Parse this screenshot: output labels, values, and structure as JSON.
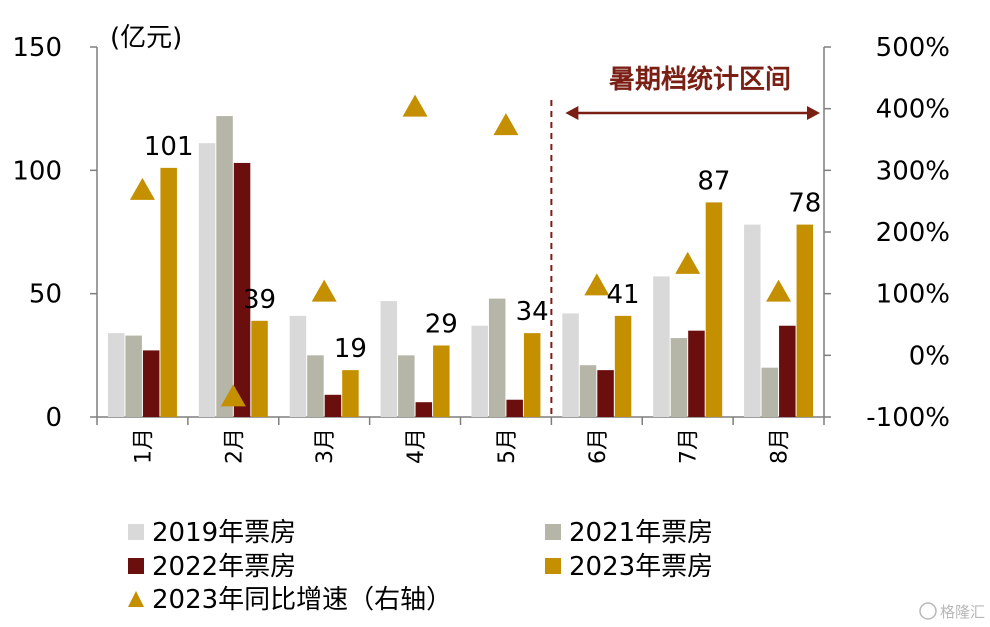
{
  "chart_data": {
    "type": "bar",
    "categories": [
      "1月",
      "2月",
      "3月",
      "4月",
      "5月",
      "6月",
      "7月",
      "8月"
    ],
    "series": [
      {
        "name": "2019年票房",
        "color": "#d9d9d9",
        "values": [
          34,
          111,
          41,
          47,
          37,
          42,
          57,
          78
        ]
      },
      {
        "name": "2021年票房",
        "color": "#b5b5a8",
        "values": [
          33,
          122,
          25,
          25,
          48,
          21,
          32,
          20
        ]
      },
      {
        "name": "2022年票房",
        "color": "#6b0e0e",
        "values": [
          27,
          103,
          9,
          6,
          7,
          19,
          35,
          37
        ]
      },
      {
        "name": "2023年票房",
        "color": "#c49000",
        "values": [
          101,
          39,
          19,
          29,
          34,
          41,
          87,
          78
        ]
      }
    ],
    "data_labels": [
      "101",
      "39",
      "19",
      "29",
      "34",
      "41",
      "87",
      "78"
    ],
    "growth_series": {
      "name": "2023年同比增速（右轴）",
      "color": "#c49000",
      "marker": "triangle",
      "values": [
        270,
        -65,
        105,
        405,
        375,
        115,
        150,
        105
      ]
    },
    "y_left": {
      "unit_label": "(亿元)",
      "ylim": [
        0,
        150
      ],
      "ticks": [
        "0",
        "50",
        "100",
        "150"
      ]
    },
    "y_right": {
      "ylim": [
        -100,
        500
      ],
      "ticks": [
        "-100%",
        "0%",
        "100%",
        "200%",
        "300%",
        "400%",
        "500%"
      ]
    },
    "annotation": {
      "text": "暑期档统计区间",
      "color": "#7a1f14",
      "range_categories": [
        "6月",
        "8月"
      ]
    },
    "legend_position": "bottom",
    "grid": false
  },
  "watermark": "格隆汇"
}
